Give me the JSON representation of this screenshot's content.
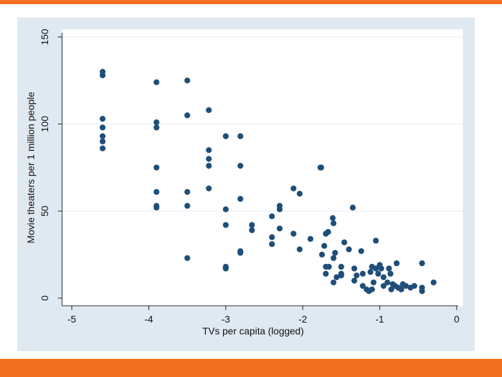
{
  "colors": {
    "accent": "#f36f21",
    "outer_background": "#dfe9f1",
    "plot_background": "#ffffff",
    "grid": "#e4ecf2",
    "marker": "#1f4e79"
  },
  "chart_data": {
    "type": "scatter",
    "title": "",
    "xlabel": "TVs per capita (logged)",
    "ylabel": "Movie theaters per 1 million people",
    "xlim": [
      -5,
      0
    ],
    "ylim": [
      0,
      150
    ],
    "xticks": [
      "-5",
      "-4",
      "-3",
      "-2",
      "-1",
      "0"
    ],
    "yticks": [
      "0",
      "50",
      "100",
      "150"
    ],
    "grid": "horizontal",
    "legend": "none",
    "points": [
      [
        -4.6,
        128
      ],
      [
        -4.6,
        130
      ],
      [
        -4.6,
        103
      ],
      [
        -4.6,
        98
      ],
      [
        -4.6,
        93
      ],
      [
        -4.6,
        90
      ],
      [
        -4.6,
        86
      ],
      [
        -3.9,
        124
      ],
      [
        -3.9,
        101
      ],
      [
        -3.9,
        98
      ],
      [
        -3.9,
        75
      ],
      [
        -3.9,
        61
      ],
      [
        -3.9,
        53
      ],
      [
        -3.9,
        52
      ],
      [
        -3.5,
        125
      ],
      [
        -3.5,
        105
      ],
      [
        -3.5,
        61
      ],
      [
        -3.5,
        53
      ],
      [
        -3.5,
        23
      ],
      [
        -3.22,
        108
      ],
      [
        -3.22,
        85
      ],
      [
        -3.22,
        80
      ],
      [
        -3.22,
        76
      ],
      [
        -3.22,
        63
      ],
      [
        -3.0,
        93
      ],
      [
        -3.0,
        51
      ],
      [
        -3.0,
        42
      ],
      [
        -3.0,
        18
      ],
      [
        -3.0,
        17
      ],
      [
        -2.81,
        93
      ],
      [
        -2.81,
        76
      ],
      [
        -2.81,
        57
      ],
      [
        -2.81,
        27
      ],
      [
        -2.81,
        26
      ],
      [
        -2.66,
        42
      ],
      [
        -2.66,
        39
      ],
      [
        -2.4,
        47
      ],
      [
        -2.4,
        35
      ],
      [
        -2.4,
        31
      ],
      [
        -2.3,
        53
      ],
      [
        -2.3,
        51
      ],
      [
        -2.3,
        40
      ],
      [
        -2.12,
        63
      ],
      [
        -2.12,
        37
      ],
      [
        -2.04,
        60
      ],
      [
        -2.04,
        28
      ],
      [
        -1.9,
        34
      ],
      [
        -1.77,
        75
      ],
      [
        -1.76,
        75
      ],
      [
        -1.75,
        25
      ],
      [
        -1.72,
        30
      ],
      [
        -1.7,
        37
      ],
      [
        -1.67,
        38
      ],
      [
        -1.7,
        18
      ],
      [
        -1.7,
        14
      ],
      [
        -1.66,
        18
      ],
      [
        -1.61,
        46
      ],
      [
        -1.6,
        43
      ],
      [
        -1.6,
        23
      ],
      [
        -1.58,
        26
      ],
      [
        -1.6,
        9
      ],
      [
        -1.56,
        12
      ],
      [
        -1.5,
        18
      ],
      [
        -1.5,
        13
      ],
      [
        -1.5,
        14
      ],
      [
        -1.46,
        32
      ],
      [
        -1.4,
        28
      ],
      [
        -1.35,
        52
      ],
      [
        -1.33,
        17
      ],
      [
        -1.33,
        10
      ],
      [
        -1.3,
        13
      ],
      [
        -1.24,
        27
      ],
      [
        -1.22,
        14
      ],
      [
        -1.22,
        7
      ],
      [
        -1.17,
        5
      ],
      [
        -1.14,
        4
      ],
      [
        -1.1,
        5
      ],
      [
        -1.12,
        15
      ],
      [
        -1.1,
        18
      ],
      [
        -1.08,
        9
      ],
      [
        -1.05,
        33
      ],
      [
        -1.05,
        17
      ],
      [
        -1.02,
        14
      ],
      [
        -1.0,
        19
      ],
      [
        -0.98,
        17
      ],
      [
        -0.95,
        7
      ],
      [
        -0.95,
        12
      ],
      [
        -0.9,
        9
      ],
      [
        -0.88,
        17
      ],
      [
        -0.86,
        14
      ],
      [
        -0.85,
        5
      ],
      [
        -0.83,
        8
      ],
      [
        -0.8,
        7
      ],
      [
        -0.78,
        20
      ],
      [
        -0.76,
        6
      ],
      [
        -0.72,
        5
      ],
      [
        -0.7,
        8
      ],
      [
        -0.66,
        7
      ],
      [
        -0.6,
        6
      ],
      [
        -0.55,
        7
      ],
      [
        -0.45,
        20
      ],
      [
        -0.45,
        6
      ],
      [
        -0.45,
        4
      ],
      [
        -0.3,
        9
      ]
    ]
  }
}
